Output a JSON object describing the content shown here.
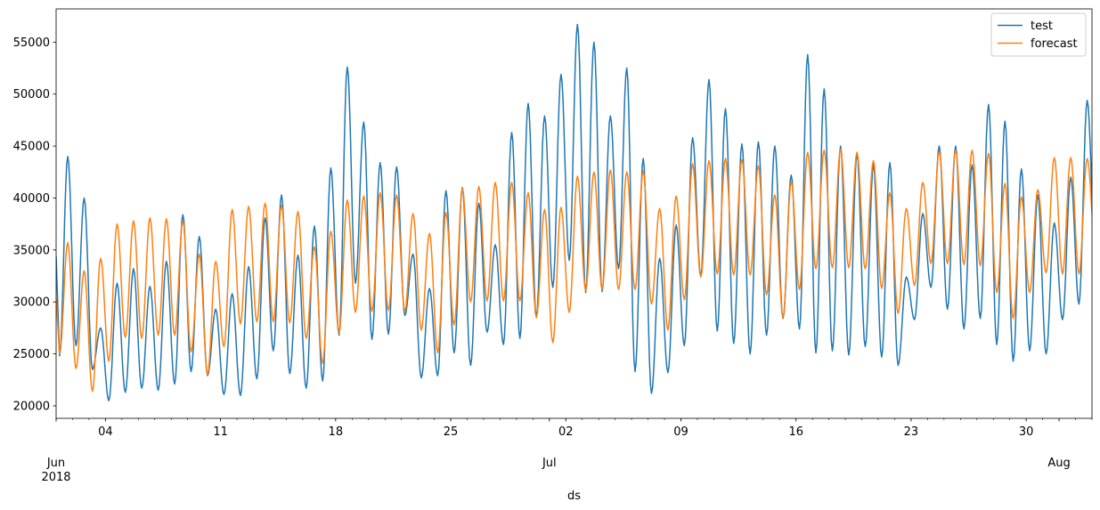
{
  "chart_data": {
    "type": "line",
    "title": "",
    "xlabel": "ds",
    "ylabel": "",
    "x_range": [
      "2018-06-01",
      "2018-08-03"
    ],
    "ylim": [
      18800,
      58200
    ],
    "grid": false,
    "legend_position": "top-right",
    "x_ticks": [
      {
        "date": "2018-06-04",
        "label": "04"
      },
      {
        "date": "2018-06-11",
        "label": "11"
      },
      {
        "date": "2018-06-18",
        "label": "18"
      },
      {
        "date": "2018-06-25",
        "label": "25"
      },
      {
        "date": "2018-07-02",
        "label": "02"
      },
      {
        "date": "2018-07-09",
        "label": "09"
      },
      {
        "date": "2018-07-16",
        "label": "16"
      },
      {
        "date": "2018-07-23",
        "label": "23"
      },
      {
        "date": "2018-07-30",
        "label": "30"
      }
    ],
    "x_month_labels": [
      {
        "date": "2018-06-01",
        "label": "Jun",
        "year": "2018"
      },
      {
        "date": "2018-07-01",
        "label": "Jul",
        "year": ""
      },
      {
        "date": "2018-08-01",
        "label": "Aug",
        "year": ""
      }
    ],
    "y_ticks": [
      20000,
      25000,
      30000,
      35000,
      40000,
      45000,
      50000,
      55000
    ],
    "y_tick_labels": [
      "20000",
      "25000",
      "30000",
      "35000",
      "40000",
      "45000",
      "50000",
      "55000"
    ],
    "series_note": "daily peak (at ~17:00) and trough (at ~05:00) values read from the plot",
    "series": [
      {
        "name": "test",
        "color": "#1f77b4",
        "peaks": [
          44000,
          40000,
          27500,
          31800,
          33200,
          31500,
          33900,
          38400,
          36300,
          29300,
          30800,
          33400,
          38100,
          40300,
          34500,
          37300,
          42900,
          52600,
          47300,
          43400,
          43000,
          34600,
          31300,
          40700,
          41000,
          39500,
          35500,
          46300,
          49100,
          47900,
          51900,
          56700,
          55000,
          47900,
          52500,
          43800,
          34200,
          37400,
          45800,
          51400,
          48600,
          45200,
          45400,
          45000,
          42200,
          53800,
          50500,
          45000,
          44300,
          43200,
          43400,
          32400,
          38500,
          45000,
          45000,
          43200,
          49000,
          47400,
          42800,
          40300,
          37600,
          42000,
          49400,
          47100
        ],
        "troughs": [
          24800,
          25800,
          23500,
          20500,
          21300,
          21700,
          21500,
          22100,
          23300,
          22900,
          21100,
          21000,
          22600,
          25300,
          23100,
          21700,
          22400,
          26800,
          31800,
          26400,
          26900,
          28700,
          22700,
          22900,
          25100,
          23900,
          27100,
          25900,
          26500,
          28500,
          31400,
          34000,
          30900,
          31000,
          33200,
          23300,
          21200,
          23200,
          25800,
          32500,
          27200,
          26000,
          25000,
          26800,
          28400,
          27400,
          25100,
          25300,
          24900,
          25700,
          24700,
          23900,
          28300,
          31400,
          29300,
          27400,
          28400,
          25900,
          24300,
          25300,
          25000,
          28300,
          29800,
          34800
        ]
      },
      {
        "name": "forecast",
        "color": "#ff7f0e",
        "peaks": [
          35700,
          33000,
          34200,
          37500,
          37800,
          38100,
          38000,
          37800,
          34600,
          33900,
          38900,
          39200,
          39500,
          39300,
          38700,
          35300,
          36800,
          39800,
          40200,
          40500,
          40300,
          38500,
          36600,
          38600,
          40900,
          41100,
          41500,
          41500,
          40500,
          38900,
          39100,
          42100,
          42500,
          42700,
          42500,
          42600,
          39000,
          40200,
          43300,
          43600,
          43800,
          43700,
          43100,
          40300,
          41600,
          44400,
          44600,
          44700,
          44400,
          43600,
          40500,
          39000,
          41500,
          44500,
          44600,
          44600,
          44300,
          41400,
          40100,
          40800,
          43900,
          43900,
          43800,
          43500
        ],
        "troughs": [
          25000,
          23600,
          21400,
          24300,
          26600,
          26500,
          26800,
          26800,
          25200,
          23000,
          25700,
          27900,
          28100,
          28100,
          28000,
          26500,
          24100,
          27000,
          29000,
          29100,
          29200,
          29100,
          27300,
          25100,
          27800,
          30000,
          30100,
          30100,
          30100,
          28500,
          26100,
          29000,
          31100,
          31200,
          31200,
          31200,
          29800,
          27300,
          30200,
          32400,
          32700,
          32600,
          32600,
          30700,
          28500,
          31200,
          33200,
          33300,
          33300,
          33200,
          31300,
          28900,
          31600,
          33700,
          33700,
          33600,
          33500,
          30900,
          28400,
          30900,
          32800,
          32700,
          32700,
          35500
        ]
      }
    ]
  }
}
